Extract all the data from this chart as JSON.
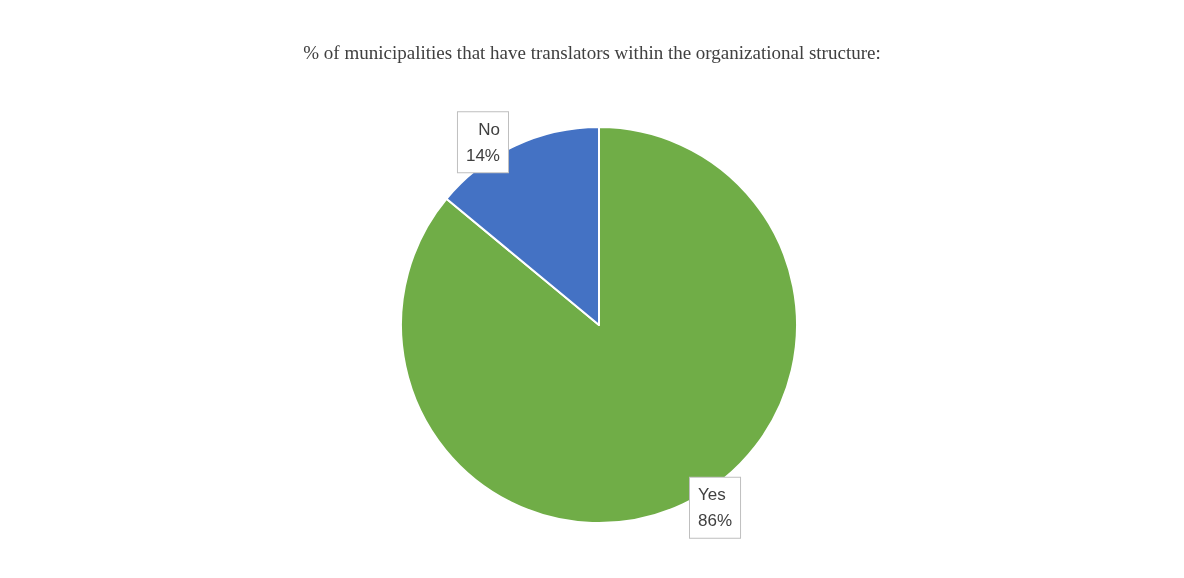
{
  "chart_data": {
    "type": "pie",
    "title": "% of municipalities that have translators within the organizational structure:",
    "categories": [
      "Yes",
      "No"
    ],
    "values": [
      86,
      14
    ],
    "colors": [
      "#70ad47",
      "#4472c4"
    ],
    "value_labels": [
      "86%",
      "14%"
    ],
    "legend": false
  }
}
